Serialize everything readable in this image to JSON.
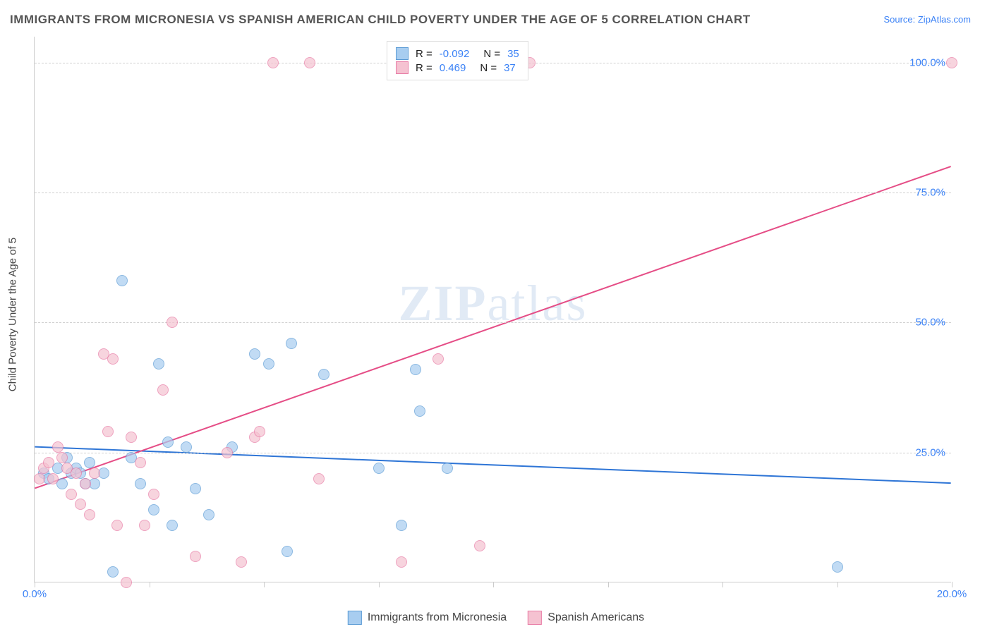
{
  "title": "IMMIGRANTS FROM MICRONESIA VS SPANISH AMERICAN CHILD POVERTY UNDER THE AGE OF 5 CORRELATION CHART",
  "source": "Source: ZipAtlas.com",
  "ylabel": "Child Poverty Under the Age of 5",
  "watermark_bold": "ZIP",
  "watermark_rest": "atlas",
  "chart": {
    "type": "scatter",
    "xlim": [
      0,
      20
    ],
    "ylim": [
      0,
      105
    ],
    "xticks": [
      0,
      2.5,
      5,
      7.5,
      10,
      12.5,
      15,
      17.5,
      20
    ],
    "xtick_labels": {
      "0": "0.0%",
      "20": "20.0%"
    },
    "yticks": [
      25,
      50,
      75,
      100
    ],
    "ytick_labels": [
      "25.0%",
      "50.0%",
      "75.0%",
      "100.0%"
    ],
    "grid_color": "#d0d0d0",
    "axis_color": "#cccccc",
    "background_color": "#ffffff",
    "point_radius": 8,
    "point_opacity": 0.7,
    "series": [
      {
        "name": "Immigrants from Micronesia",
        "color_fill": "#a8cdf0",
        "color_stroke": "#5b9bd5",
        "R": "-0.092",
        "N": "35",
        "trend": {
          "x1": 0,
          "y1": 26,
          "x2": 20,
          "y2": 19,
          "color": "#2e75d6",
          "width": 2
        },
        "points": [
          [
            0.2,
            21
          ],
          [
            0.3,
            20
          ],
          [
            0.5,
            22
          ],
          [
            0.6,
            19
          ],
          [
            0.7,
            24
          ],
          [
            0.8,
            21
          ],
          [
            0.9,
            22
          ],
          [
            1.0,
            21
          ],
          [
            1.1,
            19
          ],
          [
            1.2,
            23
          ],
          [
            1.3,
            19
          ],
          [
            1.5,
            21
          ],
          [
            1.7,
            2
          ],
          [
            1.9,
            58
          ],
          [
            2.1,
            24
          ],
          [
            2.3,
            19
          ],
          [
            2.6,
            14
          ],
          [
            2.7,
            42
          ],
          [
            2.9,
            27
          ],
          [
            3.0,
            11
          ],
          [
            3.3,
            26
          ],
          [
            3.5,
            18
          ],
          [
            3.8,
            13
          ],
          [
            4.3,
            26
          ],
          [
            4.8,
            44
          ],
          [
            5.1,
            42
          ],
          [
            5.5,
            6
          ],
          [
            5.6,
            46
          ],
          [
            6.3,
            40
          ],
          [
            7.5,
            22
          ],
          [
            8.0,
            11
          ],
          [
            8.3,
            41
          ],
          [
            8.4,
            33
          ],
          [
            9.0,
            22
          ],
          [
            17.5,
            3
          ]
        ]
      },
      {
        "name": "Spanish Americans",
        "color_fill": "#f5c2d1",
        "color_stroke": "#e87ba5",
        "R": "0.469",
        "N": "37",
        "trend": {
          "x1": 0,
          "y1": 18,
          "x2": 20,
          "y2": 80,
          "color": "#e54d86",
          "width": 2
        },
        "points": [
          [
            0.1,
            20
          ],
          [
            0.2,
            22
          ],
          [
            0.3,
            23
          ],
          [
            0.4,
            20
          ],
          [
            0.5,
            26
          ],
          [
            0.6,
            24
          ],
          [
            0.7,
            22
          ],
          [
            0.8,
            17
          ],
          [
            0.9,
            21
          ],
          [
            1.0,
            15
          ],
          [
            1.1,
            19
          ],
          [
            1.2,
            13
          ],
          [
            1.3,
            21
          ],
          [
            1.5,
            44
          ],
          [
            1.6,
            29
          ],
          [
            1.7,
            43
          ],
          [
            1.8,
            11
          ],
          [
            2.0,
            0
          ],
          [
            2.1,
            28
          ],
          [
            2.3,
            23
          ],
          [
            2.4,
            11
          ],
          [
            2.6,
            17
          ],
          [
            2.8,
            37
          ],
          [
            3.0,
            50
          ],
          [
            3.5,
            5
          ],
          [
            4.2,
            25
          ],
          [
            4.5,
            4
          ],
          [
            4.8,
            28
          ],
          [
            4.9,
            29
          ],
          [
            5.2,
            100
          ],
          [
            6.0,
            100
          ],
          [
            6.2,
            20
          ],
          [
            8.0,
            4
          ],
          [
            8.8,
            43
          ],
          [
            9.7,
            7
          ],
          [
            10.8,
            100
          ],
          [
            20.0,
            100
          ]
        ]
      }
    ]
  },
  "stats_box": {
    "rows": [
      {
        "swatch_fill": "#a8cdf0",
        "swatch_stroke": "#5b9bd5",
        "R": "-0.092",
        "N": "35"
      },
      {
        "swatch_fill": "#f5c2d1",
        "swatch_stroke": "#e87ba5",
        "R": "0.469",
        "N": "37"
      }
    ],
    "R_label": "R =",
    "N_label": "N ="
  },
  "legend": [
    {
      "fill": "#a8cdf0",
      "stroke": "#5b9bd5",
      "label": "Immigrants from Micronesia"
    },
    {
      "fill": "#f5c2d1",
      "stroke": "#e87ba5",
      "label": "Spanish Americans"
    }
  ]
}
